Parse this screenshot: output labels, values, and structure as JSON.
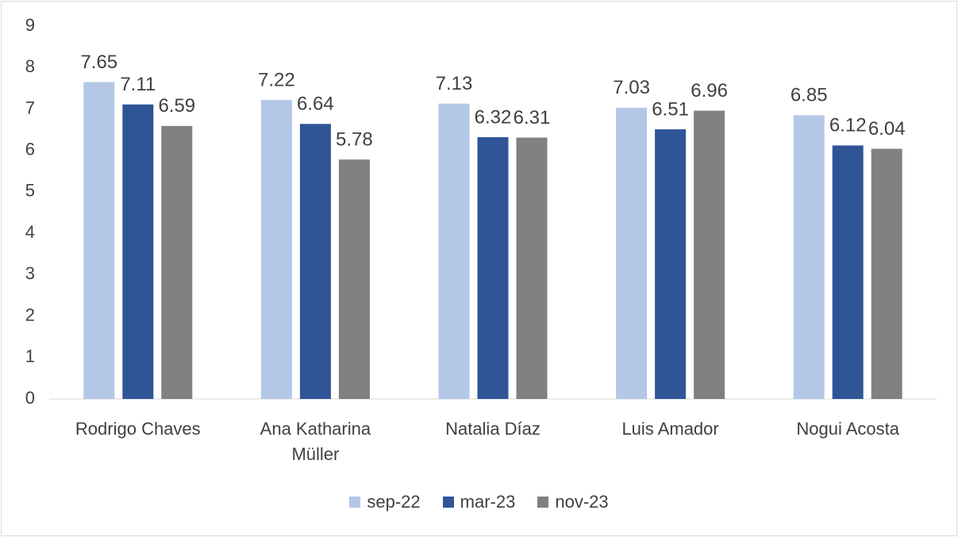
{
  "chart_data": {
    "type": "bar",
    "categories": [
      "Rodrigo Chaves",
      "Ana Katharina Müller",
      "Natalia Díaz",
      "Luis Amador",
      "Nogui Acosta"
    ],
    "series": [
      {
        "name": "sep-22",
        "color": "#b4c7e7",
        "values": [
          7.65,
          7.22,
          7.13,
          7.03,
          6.85
        ]
      },
      {
        "name": "mar-23",
        "color": "#2f5597",
        "values": [
          7.11,
          6.64,
          6.32,
          6.51,
          6.12
        ]
      },
      {
        "name": "nov-23",
        "color": "#808080",
        "values": [
          6.59,
          5.78,
          6.31,
          6.96,
          6.04
        ]
      }
    ],
    "ylim": [
      0,
      9
    ],
    "yticks": [
      0,
      1,
      2,
      3,
      4,
      5,
      6,
      7,
      8,
      9
    ],
    "grid": false,
    "legend": "bottom",
    "data_labels": true
  }
}
